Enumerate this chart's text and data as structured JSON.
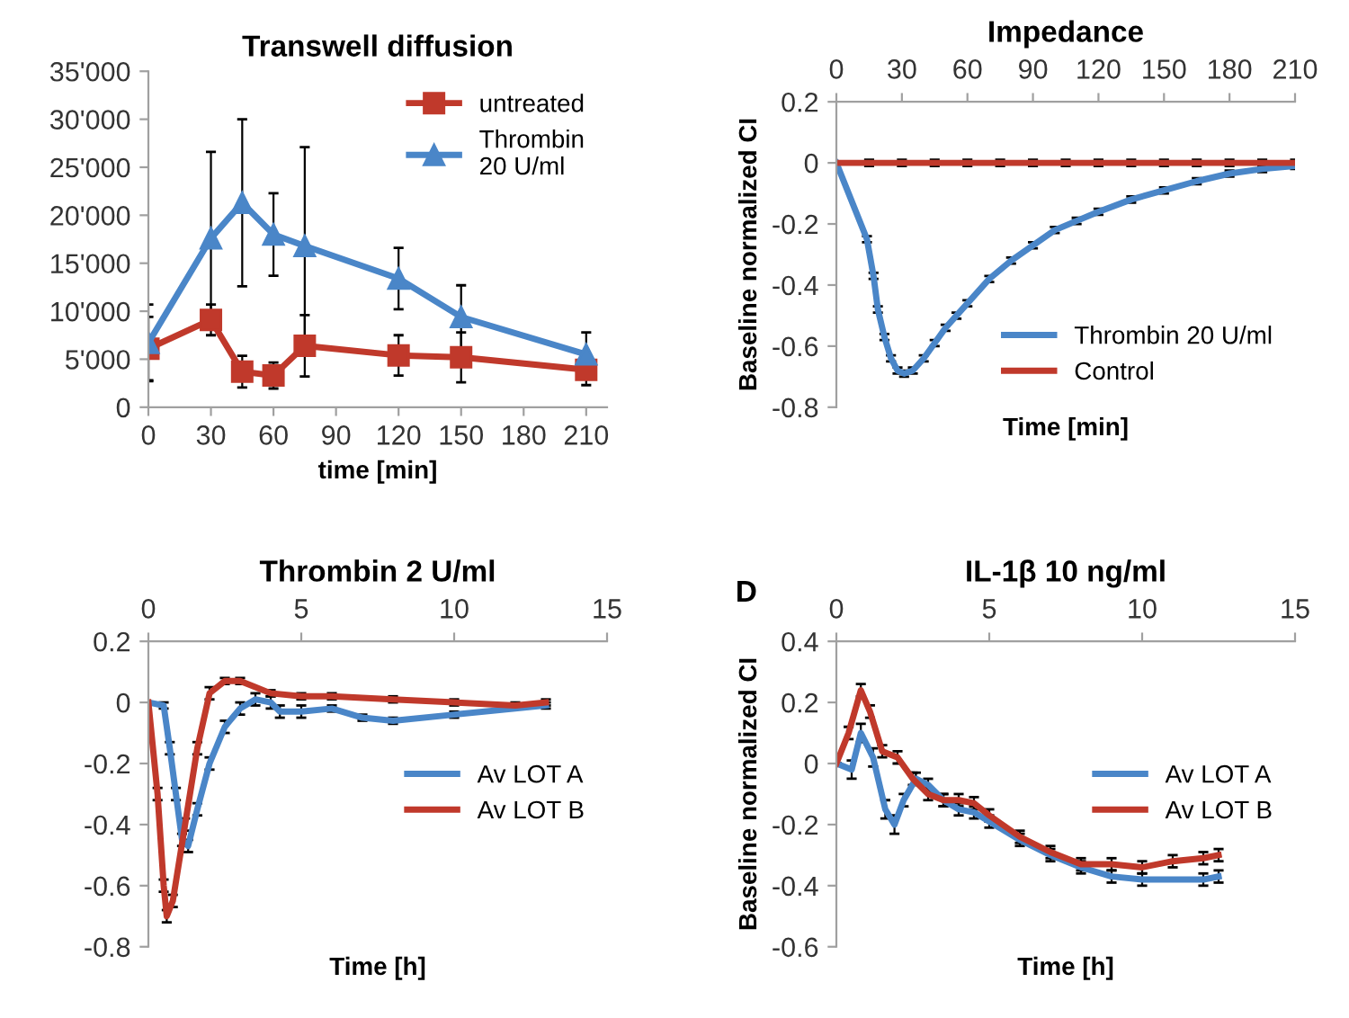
{
  "chart_data": [
    {
      "type": "line",
      "title": "Transwell diffusion",
      "xlabel": "time [min]",
      "x": [
        0,
        30,
        45,
        60,
        75,
        120,
        150,
        210
      ],
      "xlim": [
        0,
        220
      ],
      "xticks": [
        0,
        30,
        60,
        90,
        120,
        150,
        180,
        210
      ],
      "ylim": [
        0,
        35000
      ],
      "yticks": [
        {
          "value": 0,
          "label": "0"
        },
        {
          "value": 5000,
          "label": "5'000"
        },
        {
          "value": 10000,
          "label": "10'000"
        },
        {
          "value": 15000,
          "label": "15'000"
        },
        {
          "value": 20000,
          "label": "20'000"
        },
        {
          "value": 25000,
          "label": "25'000"
        },
        {
          "value": 30000,
          "label": "30'000"
        },
        {
          "value": 35000,
          "label": "35'000"
        }
      ],
      "legend": "top right",
      "grid": false,
      "series": [
        {
          "name": "untreated",
          "color": "#c0392b",
          "marker": "square",
          "values": [
            6100,
            9100,
            3700,
            3300,
            6400,
            5400,
            5200,
            3900
          ],
          "errors": [
            3300,
            1600,
            1650,
            1350,
            3200,
            2100,
            2600,
            1600
          ]
        },
        {
          "name": "Thrombin\n20 U/ml",
          "color": "#4a86c8",
          "marker": "triangle",
          "values": [
            6700,
            17600,
            21300,
            18000,
            16800,
            13400,
            9400,
            5500
          ],
          "errors": [
            4000,
            9000,
            8700,
            4300,
            10300,
            3200,
            3300,
            2300
          ]
        }
      ]
    },
    {
      "type": "line",
      "title": "Impedance",
      "xlabel": "Time [min]",
      "ylabel": "Baseline normalized CI",
      "xlim": [
        0,
        210
      ],
      "xticks": [
        0,
        30,
        60,
        90,
        120,
        150,
        180,
        210
      ],
      "ylim": [
        -0.8,
        0.2
      ],
      "yticks": [
        -0.8,
        -0.6,
        -0.4,
        -0.2,
        0,
        0.2
      ],
      "legend": "bottom right",
      "grid": false,
      "marker": "none",
      "series": [
        {
          "name": "Thrombin 20 U/ml",
          "color": "#4a86c8",
          "x": [
            0,
            14,
            17,
            19,
            22,
            25,
            28,
            31,
            35,
            40,
            45,
            50,
            55,
            60,
            70,
            80,
            90,
            100,
            110,
            120,
            135,
            150,
            165,
            180,
            195,
            210
          ],
          "values": [
            0,
            -0.25,
            -0.37,
            -0.48,
            -0.57,
            -0.64,
            -0.68,
            -0.69,
            -0.68,
            -0.64,
            -0.59,
            -0.54,
            -0.5,
            -0.46,
            -0.38,
            -0.32,
            -0.27,
            -0.22,
            -0.19,
            -0.16,
            -0.12,
            -0.09,
            -0.06,
            -0.035,
            -0.02,
            -0.01
          ],
          "errors": [
            0,
            0.01,
            0.01,
            0.01,
            0.01,
            0.01,
            0.01,
            0.01,
            0.01,
            0.01,
            0.01,
            0.01,
            0.01,
            0.01,
            0.01,
            0.01,
            0.01,
            0.01,
            0.01,
            0.01,
            0.01,
            0.01,
            0.01,
            0.01,
            0.01,
            0.01
          ]
        },
        {
          "name": "Control",
          "color": "#c0392b",
          "x": [
            0,
            15,
            30,
            45,
            60,
            75,
            90,
            105,
            120,
            135,
            150,
            165,
            180,
            195,
            210
          ],
          "values": [
            0,
            0,
            0,
            0,
            0,
            0,
            0,
            0,
            0,
            0,
            0,
            0,
            0,
            0,
            0
          ],
          "errors": [
            0,
            0.01,
            0.01,
            0.01,
            0.01,
            0.01,
            0.01,
            0.01,
            0.01,
            0.01,
            0.01,
            0.01,
            0.01,
            0.01,
            0.01
          ]
        }
      ]
    },
    {
      "type": "line",
      "title": "Thrombin 2 U/ml",
      "xlabel": "Time [h]",
      "xlim": [
        0,
        15
      ],
      "xticks": [
        0,
        5,
        10,
        15
      ],
      "ylim": [
        -0.8,
        0.2
      ],
      "yticks": [
        -0.8,
        -0.6,
        -0.4,
        -0.2,
        0,
        0.2
      ],
      "legend": "right",
      "grid": false,
      "marker": "none",
      "series": [
        {
          "name": "Av LOT A",
          "color": "#4a86c8",
          "x": [
            0,
            0.5,
            0.7,
            0.9,
            1.1,
            1.3,
            1.6,
            2,
            2.5,
            3,
            3.5,
            4,
            4.3,
            5,
            6,
            7,
            8,
            10,
            13
          ],
          "values": [
            0,
            -0.01,
            -0.15,
            -0.3,
            -0.45,
            -0.47,
            -0.35,
            -0.2,
            -0.08,
            -0.02,
            0.01,
            0,
            -0.03,
            -0.03,
            -0.02,
            -0.05,
            -0.06,
            -0.04,
            -0.01
          ],
          "errors": [
            0,
            0.01,
            0.02,
            0.02,
            0.02,
            0.02,
            0.02,
            0.02,
            0.02,
            0.02,
            0.02,
            0.02,
            0.02,
            0.02,
            0.01,
            0.01,
            0.01,
            0.01,
            0.01
          ]
        },
        {
          "name": "Av LOT B",
          "color": "#c0392b",
          "x": [
            0,
            0.3,
            0.5,
            0.6,
            0.8,
            1.2,
            1.6,
            2,
            2.5,
            3,
            4,
            5,
            6,
            8,
            10,
            12,
            13
          ],
          "values": [
            0,
            -0.3,
            -0.6,
            -0.7,
            -0.65,
            -0.4,
            -0.15,
            0.03,
            0.07,
            0.07,
            0.03,
            0.02,
            0.02,
            0.01,
            0,
            -0.01,
            0
          ],
          "errors": [
            0,
            0.02,
            0.02,
            0.02,
            0.02,
            0.02,
            0.02,
            0.02,
            0.01,
            0.01,
            0.01,
            0.01,
            0.01,
            0.01,
            0.01,
            0.01,
            0.01
          ]
        }
      ]
    },
    {
      "type": "line",
      "title": "IL-1β 10 ng/ml",
      "xlabel": "Time [h]",
      "ylabel": "Baseline normalized CI",
      "annotations": [
        "D"
      ],
      "xlim": [
        0,
        15
      ],
      "xticks": [
        0,
        5,
        10,
        15
      ],
      "ylim": [
        -0.6,
        0.4
      ],
      "yticks": [
        -0.6,
        -0.4,
        -0.2,
        0,
        0.2,
        0.4
      ],
      "legend": "right",
      "grid": false,
      "marker": "none",
      "series": [
        {
          "name": "Av LOT A",
          "color": "#4a86c8",
          "x": [
            0,
            0.5,
            0.8,
            1.2,
            1.6,
            1.9,
            2.2,
            2.6,
            3,
            3.5,
            4,
            4.5,
            5,
            6,
            7,
            8,
            9,
            10,
            12,
            12.5
          ],
          "values": [
            0,
            -0.02,
            0.1,
            0.02,
            -0.15,
            -0.2,
            -0.12,
            -0.05,
            -0.07,
            -0.12,
            -0.15,
            -0.16,
            -0.19,
            -0.25,
            -0.3,
            -0.34,
            -0.37,
            -0.38,
            -0.38,
            -0.37
          ],
          "errors": [
            0,
            0.03,
            0.03,
            0.03,
            0.03,
            0.03,
            0.02,
            0.02,
            0.02,
            0.02,
            0.02,
            0.02,
            0.02,
            0.02,
            0.02,
            0.02,
            0.02,
            0.02,
            0.02,
            0.02
          ]
        },
        {
          "name": "Av LOT B",
          "color": "#c0392b",
          "x": [
            0,
            0.4,
            0.8,
            1.1,
            1.5,
            2,
            2.5,
            3,
            3.5,
            4,
            4.5,
            5,
            6,
            7,
            8,
            9,
            10,
            11,
            12,
            12.5
          ],
          "values": [
            0,
            0.1,
            0.24,
            0.17,
            0.04,
            0.02,
            -0.05,
            -0.1,
            -0.12,
            -0.12,
            -0.13,
            -0.17,
            -0.24,
            -0.29,
            -0.33,
            -0.33,
            -0.34,
            -0.32,
            -0.31,
            -0.3
          ],
          "errors": [
            0,
            0.02,
            0.02,
            0.02,
            0.02,
            0.02,
            0.02,
            0.02,
            0.02,
            0.02,
            0.02,
            0.02,
            0.02,
            0.02,
            0.02,
            0.02,
            0.02,
            0.02,
            0.02,
            0.02
          ]
        }
      ]
    }
  ]
}
